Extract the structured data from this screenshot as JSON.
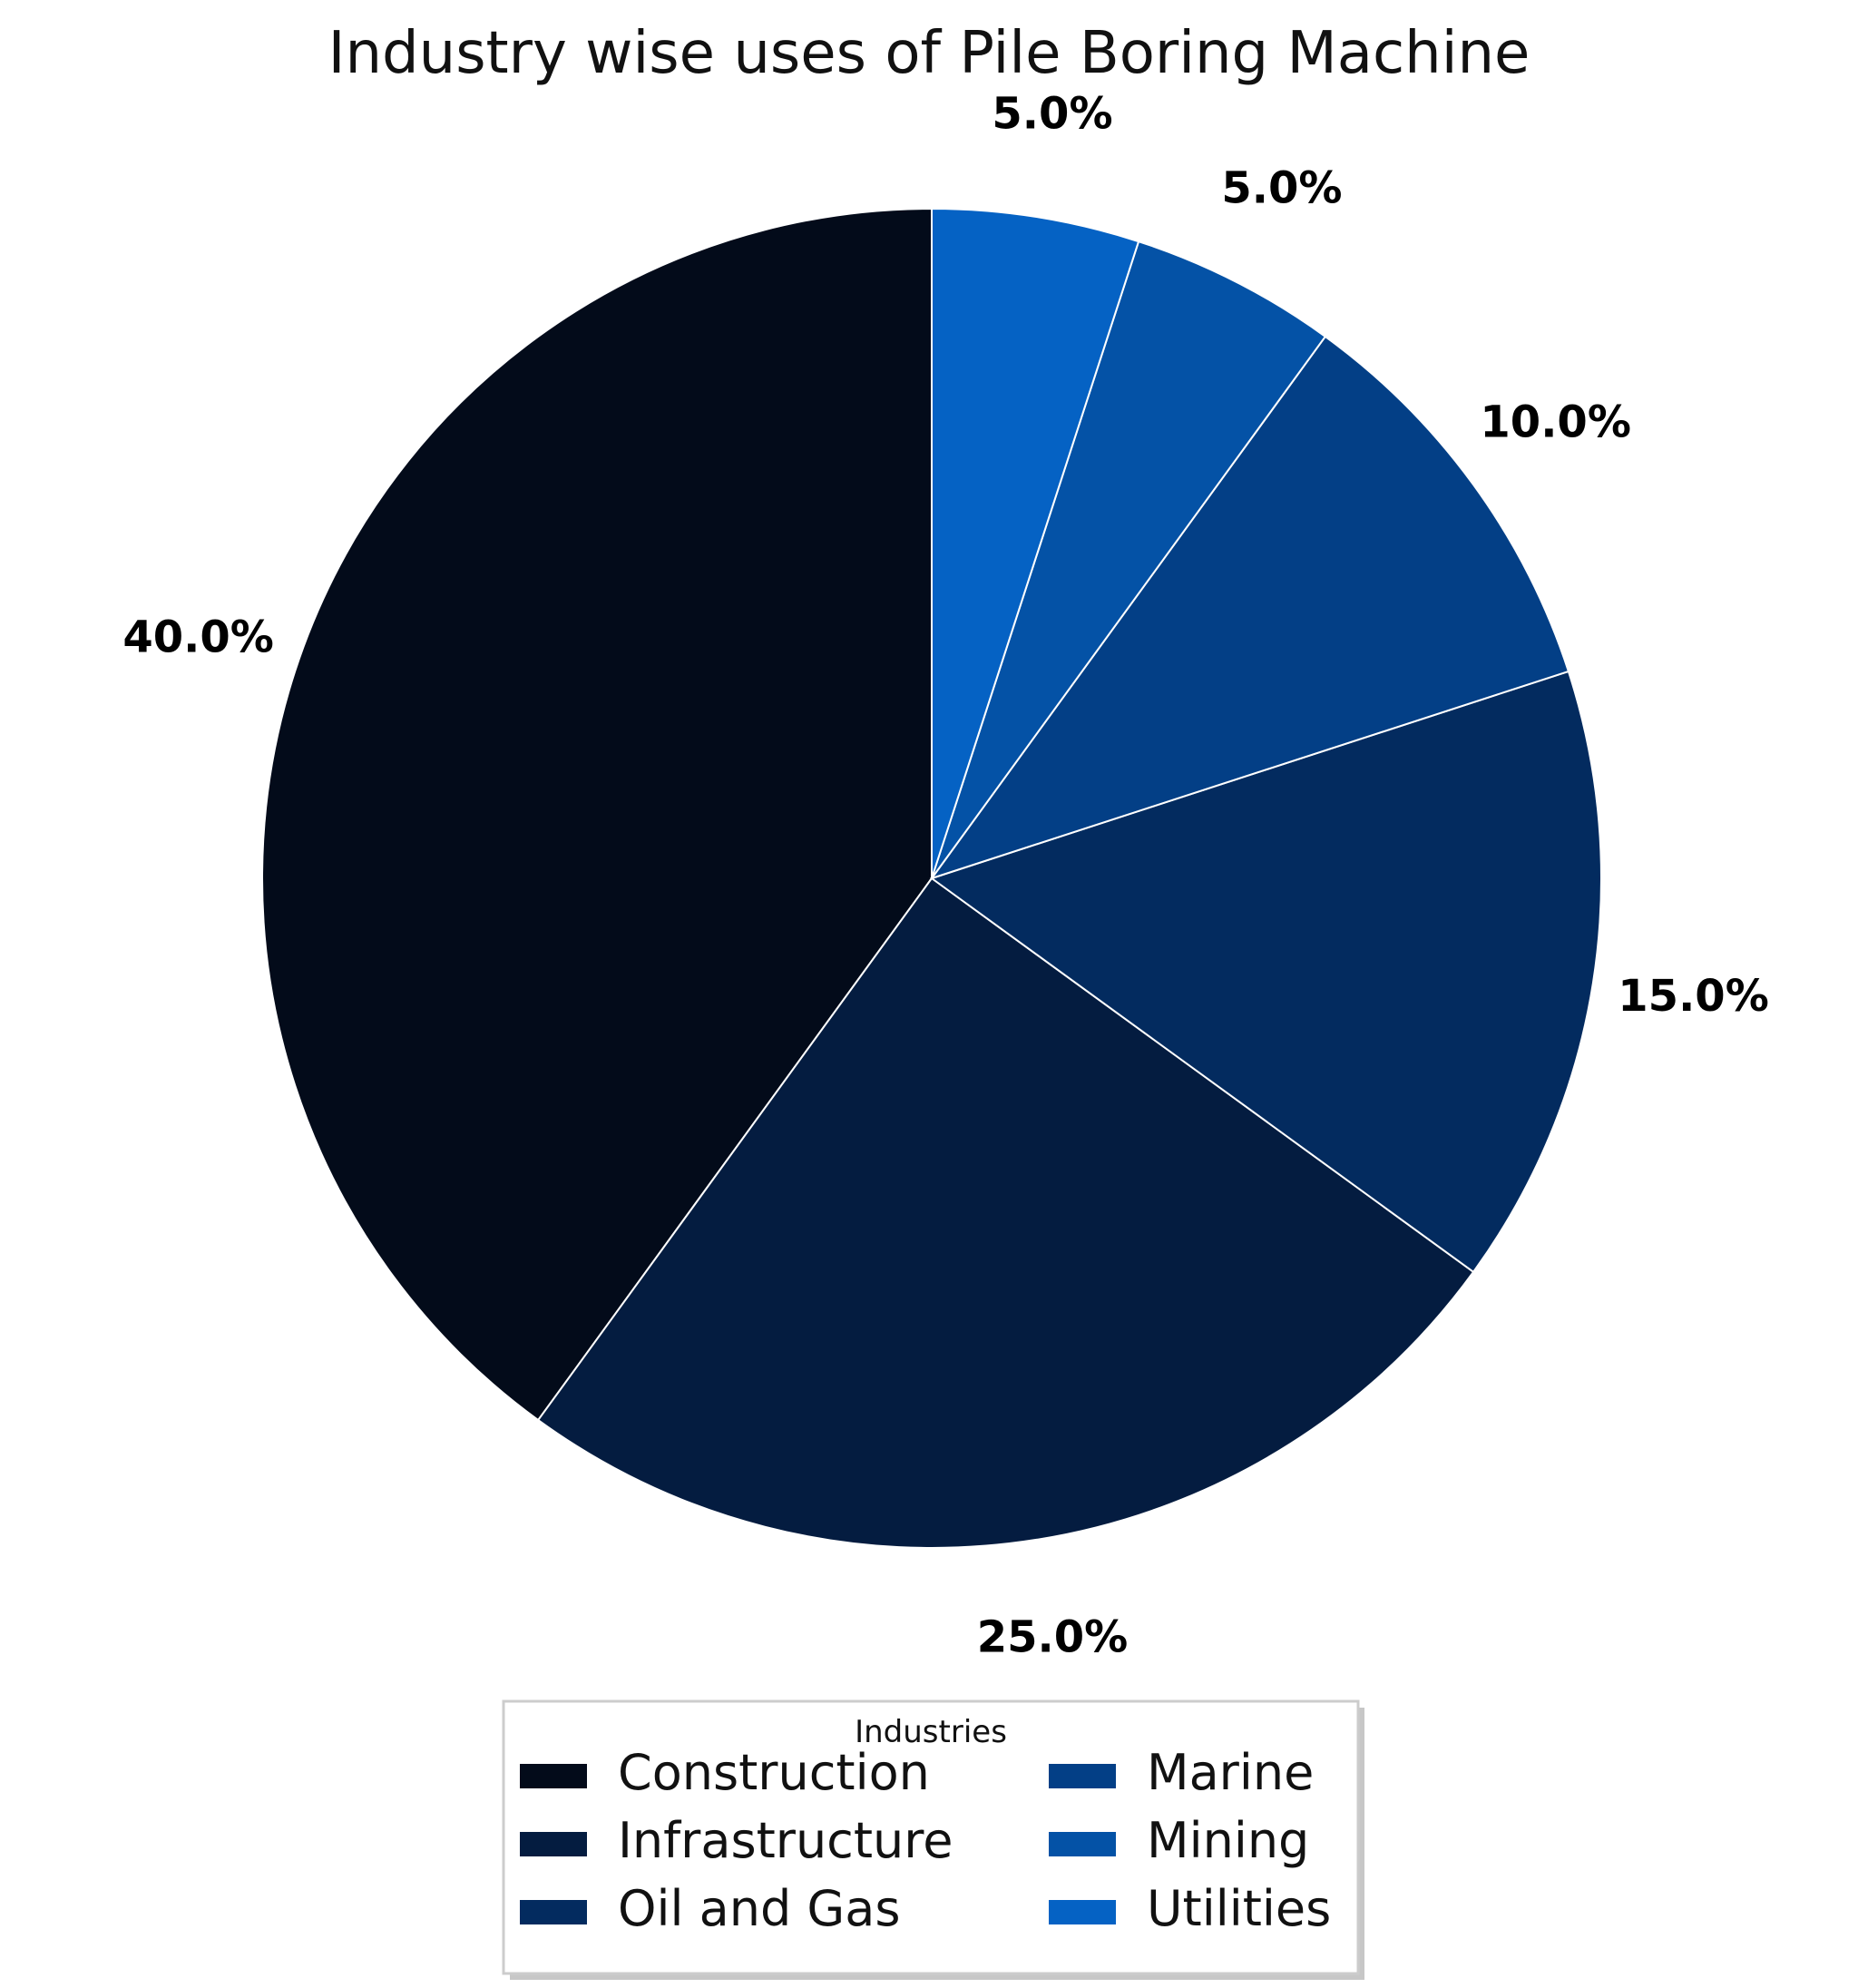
{
  "chart_data": {
    "type": "pie",
    "title": "Industry wise uses of Pile Boring Machine",
    "legend_title": "Industries",
    "legend_position": "bottom-center",
    "categories": [
      "Construction",
      "Infrastructure",
      "Oil and Gas",
      "Marine",
      "Mining",
      "Utilities"
    ],
    "values": [
      40.0,
      25.0,
      15.0,
      10.0,
      5.0,
      5.0
    ],
    "labels": [
      "40.0%",
      "25.0%",
      "15.0%",
      "10.0%",
      "5.0%",
      "5.0%"
    ],
    "colors": [
      "#030b1a",
      "#041c40",
      "#032b5f",
      "#033f86",
      "#0452a6",
      "#0562c4"
    ],
    "start_angle_deg": 90,
    "direction": "counterclockwise"
  }
}
